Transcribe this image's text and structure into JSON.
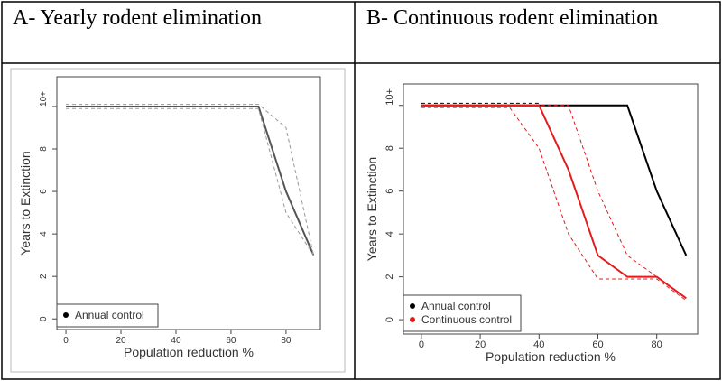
{
  "chart_data": [
    {
      "type": "line",
      "title": "A- Yearly rodent elimination",
      "x_label": "Population reduction %",
      "y_label": "Years to Extinction",
      "x": [
        0,
        10,
        20,
        30,
        40,
        50,
        60,
        70,
        80,
        90
      ],
      "series": [
        {
          "name": "Annual control",
          "color": "#555555",
          "dash": false,
          "values": [
            10,
            10,
            10,
            10,
            10,
            10,
            10,
            10,
            6,
            3
          ]
        },
        {
          "color": "#999999",
          "dash": true,
          "values": [
            10.1,
            10.1,
            10.1,
            10.1,
            10.1,
            10.1,
            10.1,
            10.1,
            9,
            3
          ]
        },
        {
          "color": "#999999",
          "dash": true,
          "values": [
            9.9,
            9.9,
            9.9,
            9.9,
            9.9,
            9.9,
            9.9,
            9.9,
            5,
            3
          ]
        }
      ],
      "legend_color": "#000000",
      "xlim": [
        -3.3,
        92.5
      ],
      "ylim": [
        -0.5,
        11.4
      ],
      "xticks": [
        0,
        20,
        40,
        60,
        80
      ],
      "yticks": [
        0,
        2,
        4,
        6,
        8,
        {
          "value": 10,
          "label": "10+"
        }
      ],
      "legend": "lower left"
    },
    {
      "type": "line",
      "title": "B- Continuous rodent elimination",
      "x_label": "Population reduction %",
      "y_label": "Years to Extinction",
      "x": [
        0,
        10,
        20,
        30,
        40,
        50,
        60,
        70,
        80,
        90
      ],
      "series": [
        {
          "name": "Annual control",
          "color": "#000000",
          "dash": false,
          "values": [
            10,
            10,
            10,
            10,
            10,
            10,
            10,
            10,
            6,
            3
          ]
        },
        {
          "color": "#000000",
          "dash": true,
          "values": [
            10.1,
            10.1,
            10.1,
            10.1,
            10.1,
            null,
            null,
            null,
            null,
            null
          ]
        },
        {
          "name": "Continuous control",
          "color": "#e41a1c",
          "dash": false,
          "values": [
            10,
            10,
            10,
            10,
            10,
            7,
            3,
            2,
            2,
            1
          ]
        },
        {
          "color": "#e41a1c",
          "dash": true,
          "values": [
            10,
            10,
            10,
            10,
            10,
            10,
            6,
            3,
            2,
            1
          ]
        },
        {
          "color": "#e41a1c",
          "dash": true,
          "values": [
            9.9,
            9.9,
            9.9,
            9.9,
            8,
            4,
            1.9,
            1.9,
            1.9,
            0.9
          ]
        }
      ],
      "xlim": [
        -6.1,
        93.9
      ],
      "ylim": [
        -0.67,
        11.0
      ],
      "xticks": [
        0,
        20,
        40,
        60,
        80
      ],
      "yticks": [
        0,
        2,
        4,
        6,
        8,
        {
          "value": 10,
          "label": "10+"
        }
      ],
      "legend": "lower left"
    }
  ]
}
